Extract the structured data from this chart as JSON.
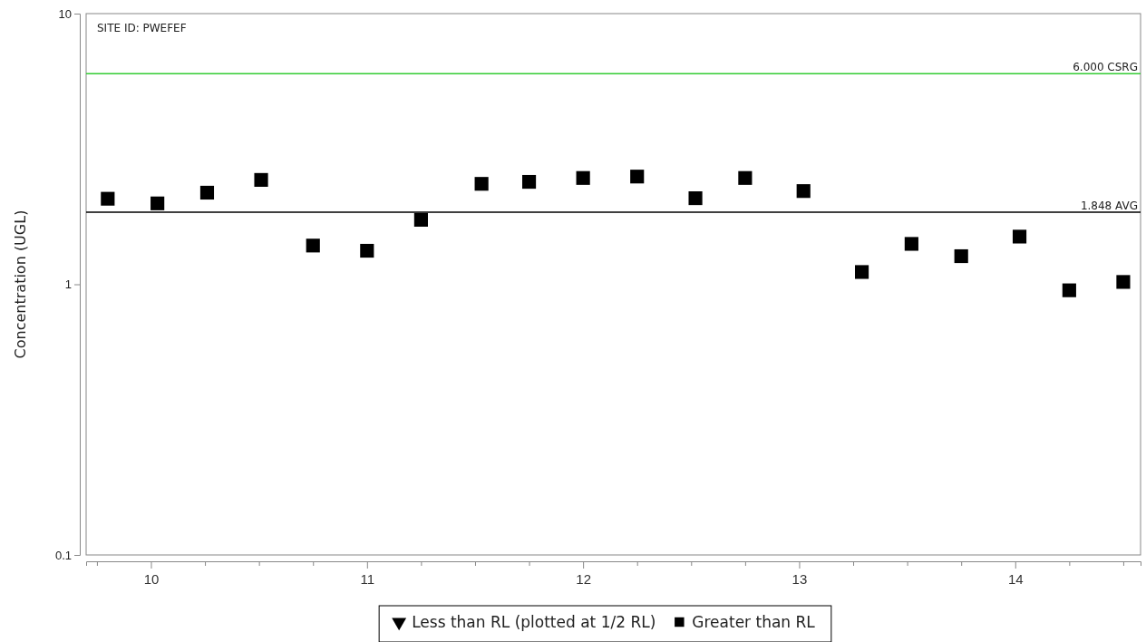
{
  "chart_data": {
    "type": "scatter",
    "ylabel": "Concentration (UGL)",
    "annotations": [
      "SITE ID: PWEFEF"
    ],
    "x": [
      9.8,
      10.03,
      10.26,
      10.51,
      10.75,
      11.0,
      11.25,
      11.53,
      11.75,
      12.0,
      12.25,
      12.52,
      12.75,
      13.02,
      13.29,
      13.52,
      13.75,
      14.02,
      14.25,
      14.5
    ],
    "series": [
      {
        "name": "Less than RL (plotted at 1/2 RL)",
        "color": "#000000",
        "marker": "triangle",
        "values": [
          null,
          null,
          null,
          null,
          null,
          null,
          null,
          null,
          null,
          null,
          null,
          null,
          null,
          null,
          null,
          null,
          null,
          null,
          null,
          null
        ]
      },
      {
        "name": "Greater than RL",
        "color": "#000000",
        "marker": "square",
        "values": [
          2.07,
          1.99,
          2.18,
          2.43,
          1.39,
          1.33,
          1.73,
          2.35,
          2.39,
          2.47,
          2.5,
          2.08,
          2.47,
          2.21,
          1.11,
          1.41,
          1.27,
          1.5,
          0.95,
          1.02
        ]
      }
    ],
    "log": "y",
    "xlim": [
      9.7,
      14.58
    ],
    "xticks": [
      {
        "value": 9.75,
        "label": null
      },
      10,
      {
        "value": 10.25,
        "label": null
      },
      {
        "value": 10.5,
        "label": null
      },
      {
        "value": 10.75,
        "label": null
      },
      11,
      {
        "value": 11.25,
        "label": null
      },
      {
        "value": 11.5,
        "label": null
      },
      {
        "value": 11.75,
        "label": null
      },
      12,
      {
        "value": 12.25,
        "label": null
      },
      {
        "value": 12.5,
        "label": null
      },
      {
        "value": 12.75,
        "label": null
      },
      13,
      {
        "value": 13.25,
        "label": null
      },
      {
        "value": 13.5,
        "label": null
      },
      {
        "value": 13.75,
        "label": null
      },
      14,
      {
        "value": 14.25,
        "label": null
      },
      {
        "value": 14.5,
        "label": null
      }
    ],
    "ylim": [
      0.1,
      10
    ],
    "yticks": [
      0.1,
      1,
      10
    ],
    "ref_lines": [
      {
        "axis": "y",
        "value": 6,
        "label": "6.000 CSRG",
        "color": "#33cc33"
      },
      {
        "axis": "y",
        "value": 1.848,
        "label": "1.848 AVG",
        "color": "#000000"
      }
    ],
    "grid": false,
    "legend": "bottom"
  }
}
